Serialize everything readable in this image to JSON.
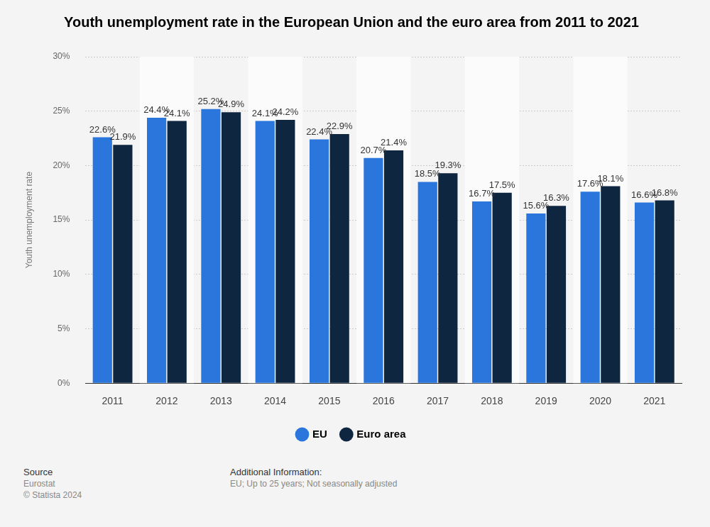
{
  "chart_data": {
    "type": "bar",
    "title": "Youth unemployment rate in the European Union and the euro area from 2011 to 2021",
    "y_label": "Youth unemployment rate",
    "categories": [
      "2011",
      "2012",
      "2013",
      "2014",
      "2015",
      "2016",
      "2017",
      "2018",
      "2019",
      "2020",
      "2021"
    ],
    "series": [
      {
        "name": "EU",
        "color": "#2a76dd",
        "values": [
          22.6,
          24.4,
          25.2,
          24.1,
          22.4,
          20.7,
          18.5,
          16.7,
          15.6,
          17.6,
          16.6
        ],
        "value_labels": [
          "22.6%",
          "24.4%",
          "25.2%",
          "24.1%",
          "22.4%",
          "20.7%",
          "18.5%",
          "16.7%",
          "15.6%",
          "17.6%",
          "16.6%"
        ]
      },
      {
        "name": "Euro area",
        "color": "#0f2640",
        "values": [
          21.9,
          24.1,
          24.9,
          24.2,
          22.9,
          21.4,
          19.3,
          17.5,
          16.3,
          18.1,
          16.8
        ],
        "value_labels": [
          "21.9%",
          "24.1%",
          "24.9%",
          "24.2%",
          "22.9%",
          "21.4%",
          "19.3%",
          "17.5%",
          "16.3%",
          "18.1%",
          "16.8%"
        ]
      }
    ],
    "ylim": [
      0,
      30
    ],
    "yticks": [
      {
        "value": 0,
        "label": "0%"
      },
      {
        "value": 5,
        "label": "5%"
      },
      {
        "value": 10,
        "label": "10%"
      },
      {
        "value": 15,
        "label": "15%"
      },
      {
        "value": 20,
        "label": "20%"
      },
      {
        "value": 25,
        "label": "25%"
      },
      {
        "value": 30,
        "label": "30%"
      }
    ],
    "grid": true,
    "legend": "bottom",
    "data_labels": true
  },
  "footer": {
    "source_heading": "Source",
    "source": "Eurostat",
    "copyright": "© Statista 2024",
    "info_heading": "Additional Information:",
    "info": "EU; Up to 25 years; Not seasonally adjusted"
  }
}
